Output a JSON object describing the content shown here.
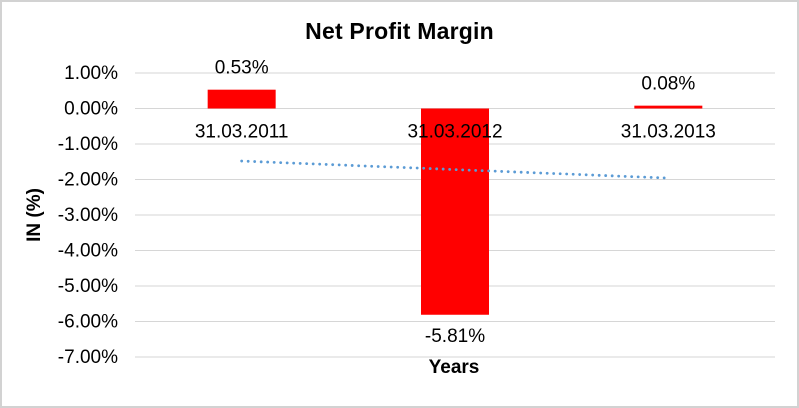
{
  "frame": {
    "background": "#ffffff",
    "border_color": "#d2d2d2"
  },
  "chart_data": {
    "type": "bar",
    "title": "Net Profit Margin",
    "xlabel": "Years",
    "ylabel": "IN (%)",
    "categories": [
      "31.03.2011",
      "31.03.2012",
      "31.03.2013"
    ],
    "values": [
      0.53,
      -5.81,
      0.08
    ],
    "data_labels": [
      "0.53%",
      "-5.81%",
      "0.08%"
    ],
    "y_tick_values": [
      1,
      0,
      -1,
      -2,
      -3,
      -4,
      -5,
      -6,
      -7
    ],
    "y_tick_labels": [
      "1.00%",
      "0.00%",
      "-1.00%",
      "-2.00%",
      "-3.00%",
      "-4.00%",
      "-5.00%",
      "-6.00%",
      "-7.00%"
    ],
    "ylim": [
      -7,
      1
    ],
    "grid": true,
    "legend": "none",
    "bar_color": "#ff0000",
    "gridline_color": "#d6d6d6",
    "text_color": "#000000",
    "trendline": {
      "type": "linear",
      "style": "dotted",
      "color": "#5b9bd5",
      "start_value": -1.48,
      "end_value": -1.96
    }
  }
}
